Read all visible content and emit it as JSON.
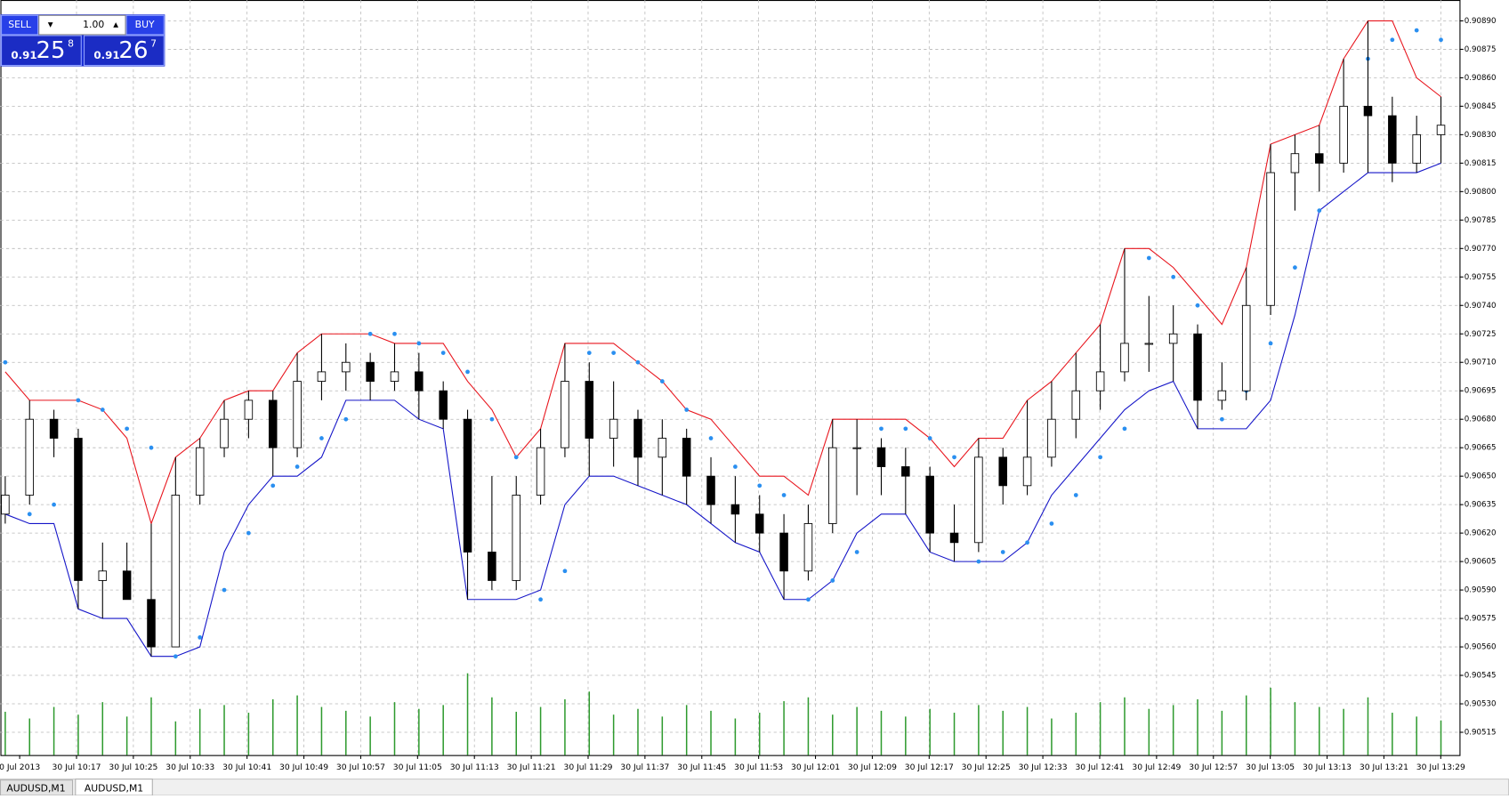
{
  "panel": {
    "sell": "SELL",
    "buy": "BUY",
    "lots": "1.00",
    "sell_big": "0.91",
    "sell_pips": "25",
    "sell_frac": "8",
    "buy_big": "0.91",
    "buy_pips": "26",
    "buy_frac": "7"
  },
  "tabs": [
    "AUDUSD,M1",
    "AUDUSD,M1"
  ],
  "chart_data": {
    "type": "candlestick",
    "ylim": [
      0.90503,
      0.90901
    ],
    "yticks": [
      {
        "value": 0.9089,
        "label": "0.90890"
      },
      {
        "value": 0.90875,
        "label": "0.90875"
      },
      {
        "value": 0.9086,
        "label": "0.90860"
      },
      {
        "value": 0.90845,
        "label": "0.90845"
      },
      {
        "value": 0.9083,
        "label": "0.90830"
      },
      {
        "value": 0.90815,
        "label": "0.90815"
      },
      {
        "value": 0.908,
        "label": "0.90800"
      },
      {
        "value": 0.90785,
        "label": "0.90785"
      },
      {
        "value": 0.9077,
        "label": "0.90770"
      },
      {
        "value": 0.90755,
        "label": "0.90755"
      },
      {
        "value": 0.9074,
        "label": "0.90740"
      },
      {
        "value": 0.90725,
        "label": "0.90725"
      },
      {
        "value": 0.9071,
        "label": "0.90710"
      },
      {
        "value": 0.90695,
        "label": "0.90695"
      },
      {
        "value": 0.9068,
        "label": "0.90680"
      },
      {
        "value": 0.90665,
        "label": "0.90665"
      },
      {
        "value": 0.9065,
        "label": "0.90650"
      },
      {
        "value": 0.90635,
        "label": "0.90635"
      },
      {
        "value": 0.9062,
        "label": "0.90620"
      },
      {
        "value": 0.90605,
        "label": "0.90605"
      },
      {
        "value": 0.9059,
        "label": "0.90590"
      },
      {
        "value": 0.90575,
        "label": "0.90575"
      },
      {
        "value": 0.9056,
        "label": "0.90560"
      },
      {
        "value": 0.90545,
        "label": "0.90545"
      },
      {
        "value": 0.9053,
        "label": "0.90530"
      },
      {
        "value": 0.90515,
        "label": "0.90515"
      }
    ],
    "time_labels": [
      "0 Jul 2013",
      "30 Jul 10:17",
      "30 Jul 10:25",
      "30 Jul 10:33",
      "30 Jul 10:41",
      "30 Jul 10:49",
      "30 Jul 10:57",
      "30 Jul 11:05",
      "30 Jul 11:13",
      "30 Jul 11:21",
      "30 Jul 11:29",
      "30 Jul 11:37",
      "30 Jul 11:45",
      "30 Jul 11:53",
      "30 Jul 12:01",
      "30 Jul 12:09",
      "30 Jul 12:17",
      "30 Jul 12:25",
      "30 Jul 12:33",
      "30 Jul 12:41",
      "30 Jul 12:49",
      "30 Jul 12:57",
      "30 Jul 13:05",
      "30 Jul 13:13",
      "30 Jul 13:21",
      "30 Jul 13:29"
    ],
    "grid": true,
    "candles": [
      [
        0.9063,
        0.9065,
        0.90625,
        0.9064
      ],
      [
        0.9064,
        0.9069,
        0.90635,
        0.9068
      ],
      [
        0.9068,
        0.90685,
        0.9066,
        0.9067
      ],
      [
        0.9067,
        0.90675,
        0.9058,
        0.90595
      ],
      [
        0.90595,
        0.90615,
        0.90575,
        0.906
      ],
      [
        0.906,
        0.90615,
        0.90585,
        0.90585
      ],
      [
        0.90585,
        0.90625,
        0.90555,
        0.9056
      ],
      [
        0.9056,
        0.9066,
        0.9056,
        0.9064
      ],
      [
        0.9064,
        0.9067,
        0.90635,
        0.90665
      ],
      [
        0.90665,
        0.9069,
        0.9066,
        0.9068
      ],
      [
        0.9068,
        0.90695,
        0.9067,
        0.9069
      ],
      [
        0.9069,
        0.90695,
        0.9065,
        0.90665
      ],
      [
        0.90665,
        0.90715,
        0.9066,
        0.907
      ],
      [
        0.907,
        0.90725,
        0.9069,
        0.90705
      ],
      [
        0.90705,
        0.9072,
        0.90695,
        0.9071
      ],
      [
        0.9071,
        0.90715,
        0.9069,
        0.907
      ],
      [
        0.907,
        0.9072,
        0.90695,
        0.90705
      ],
      [
        0.90705,
        0.90715,
        0.9068,
        0.90695
      ],
      [
        0.90695,
        0.907,
        0.90675,
        0.9068
      ],
      [
        0.9068,
        0.90685,
        0.90585,
        0.9061
      ],
      [
        0.9061,
        0.9065,
        0.9059,
        0.90595
      ],
      [
        0.90595,
        0.9065,
        0.9059,
        0.9064
      ],
      [
        0.9064,
        0.90675,
        0.90635,
        0.90665
      ],
      [
        0.90665,
        0.9072,
        0.9066,
        0.907
      ],
      [
        0.907,
        0.9071,
        0.9065,
        0.9067
      ],
      [
        0.9067,
        0.907,
        0.90655,
        0.9068
      ],
      [
        0.9068,
        0.90685,
        0.90645,
        0.9066
      ],
      [
        0.9066,
        0.9068,
        0.9064,
        0.9067
      ],
      [
        0.9067,
        0.90675,
        0.90635,
        0.9065
      ],
      [
        0.9065,
        0.9066,
        0.90625,
        0.90635
      ],
      [
        0.90635,
        0.9065,
        0.90615,
        0.9063
      ],
      [
        0.9063,
        0.9064,
        0.9061,
        0.9062
      ],
      [
        0.9062,
        0.9063,
        0.90585,
        0.906
      ],
      [
        0.906,
        0.90635,
        0.90595,
        0.90625
      ],
      [
        0.90625,
        0.9068,
        0.9062,
        0.90665
      ],
      [
        0.90665,
        0.9068,
        0.9064,
        0.90665
      ],
      [
        0.90665,
        0.9067,
        0.9064,
        0.90655
      ],
      [
        0.90655,
        0.90665,
        0.9063,
        0.9065
      ],
      [
        0.9065,
        0.90655,
        0.9061,
        0.9062
      ],
      [
        0.9062,
        0.90635,
        0.90605,
        0.90615
      ],
      [
        0.90615,
        0.9067,
        0.9061,
        0.9066
      ],
      [
        0.9066,
        0.90665,
        0.90635,
        0.90645
      ],
      [
        0.90645,
        0.9069,
        0.9064,
        0.9066
      ],
      [
        0.9066,
        0.907,
        0.90655,
        0.9068
      ],
      [
        0.9068,
        0.90715,
        0.9067,
        0.90695
      ],
      [
        0.90695,
        0.9073,
        0.90685,
        0.90705
      ],
      [
        0.90705,
        0.9077,
        0.907,
        0.9072
      ],
      [
        0.9072,
        0.90745,
        0.90705,
        0.9072
      ],
      [
        0.9072,
        0.9074,
        0.907,
        0.90725
      ],
      [
        0.90725,
        0.9073,
        0.90675,
        0.9069
      ],
      [
        0.9069,
        0.9071,
        0.90685,
        0.90695
      ],
      [
        0.90695,
        0.9076,
        0.9069,
        0.9074
      ],
      [
        0.9074,
        0.90825,
        0.90735,
        0.9081
      ],
      [
        0.9081,
        0.9083,
        0.9079,
        0.9082
      ],
      [
        0.9082,
        0.90835,
        0.908,
        0.90815
      ],
      [
        0.90815,
        0.9087,
        0.9081,
        0.90845
      ],
      [
        0.90845,
        0.9089,
        0.9081,
        0.9084
      ],
      [
        0.9084,
        0.9085,
        0.90805,
        0.90815
      ],
      [
        0.90815,
        0.9084,
        0.9081,
        0.9083
      ],
      [
        0.9083,
        0.9085,
        0.90815,
        0.90835
      ]
    ],
    "series": [
      {
        "name": "upper",
        "color": "#e8141c",
        "values": [
          0.90705,
          0.9069,
          0.9069,
          0.9069,
          0.90685,
          0.9067,
          0.90625,
          0.9066,
          0.9067,
          0.9069,
          0.90695,
          0.90695,
          0.90715,
          0.90725,
          0.90725,
          0.90725,
          0.9072,
          0.9072,
          0.9072,
          0.907,
          0.90685,
          0.9066,
          0.90675,
          0.9072,
          0.9072,
          0.9072,
          0.9071,
          0.907,
          0.90685,
          0.9068,
          0.90665,
          0.9065,
          0.9065,
          0.9064,
          0.9068,
          0.9068,
          0.9068,
          0.9068,
          0.9067,
          0.90655,
          0.9067,
          0.9067,
          0.9069,
          0.907,
          0.90715,
          0.9073,
          0.9077,
          0.9077,
          0.9076,
          0.90745,
          0.9073,
          0.9076,
          0.90825,
          0.9083,
          0.90835,
          0.9087,
          0.9089,
          0.9089,
          0.9086,
          0.9085
        ]
      },
      {
        "name": "lower",
        "color": "#1414c8",
        "values": [
          0.9063,
          0.90625,
          0.90625,
          0.9058,
          0.90575,
          0.90575,
          0.90555,
          0.90555,
          0.9056,
          0.9061,
          0.90635,
          0.9065,
          0.9065,
          0.9066,
          0.9069,
          0.9069,
          0.9069,
          0.9068,
          0.90675,
          0.90585,
          0.90585,
          0.90585,
          0.9059,
          0.90635,
          0.9065,
          0.9065,
          0.90645,
          0.9064,
          0.90635,
          0.90625,
          0.90615,
          0.9061,
          0.90585,
          0.90585,
          0.90595,
          0.9062,
          0.9063,
          0.9063,
          0.9061,
          0.90605,
          0.90605,
          0.90605,
          0.90615,
          0.9064,
          0.90655,
          0.9067,
          0.90685,
          0.90695,
          0.907,
          0.90675,
          0.90675,
          0.90675,
          0.9069,
          0.90735,
          0.9079,
          0.908,
          0.9081,
          0.9081,
          0.9081,
          0.90815
        ]
      }
    ],
    "sar": {
      "color": "#2a8ff0",
      "values": [
        0.9071,
        0.9063,
        0.90635,
        0.9069,
        0.90685,
        0.90675,
        0.90665,
        0.90555,
        0.90565,
        0.9059,
        0.9062,
        0.90645,
        0.90655,
        0.9067,
        0.9068,
        0.90725,
        0.90725,
        0.9072,
        0.90715,
        0.90705,
        0.9068,
        0.9066,
        0.90585,
        0.906,
        0.90715,
        0.90715,
        0.9071,
        0.907,
        0.90685,
        0.9067,
        0.90655,
        0.90645,
        0.9064,
        0.90585,
        0.90595,
        0.9061,
        0.90675,
        0.90675,
        0.9067,
        0.9066,
        0.90605,
        0.9061,
        0.90615,
        0.90625,
        0.9064,
        0.9066,
        0.90675,
        0.90765,
        0.90755,
        0.9074,
        0.9068,
        0.90695,
        0.9072,
        0.9076,
        0.9079,
        0.9082,
        0.9087,
        0.9088,
        0.90885,
        0.9088
      ]
    },
    "volume": {
      "color": "#2e9a2e",
      "vlim": [
        0,
        100
      ],
      "values": [
        45,
        38,
        50,
        42,
        55,
        40,
        60,
        35,
        48,
        52,
        44,
        58,
        62,
        50,
        46,
        40,
        55,
        48,
        52,
        85,
        60,
        45,
        50,
        58,
        66,
        42,
        48,
        40,
        52,
        46,
        38,
        44,
        56,
        60,
        42,
        50,
        46,
        40,
        48,
        44,
        52,
        46,
        50,
        38,
        44,
        55,
        60,
        48,
        52,
        58,
        46,
        62,
        70,
        55,
        50,
        48,
        60,
        44,
        40,
        36
      ]
    }
  }
}
